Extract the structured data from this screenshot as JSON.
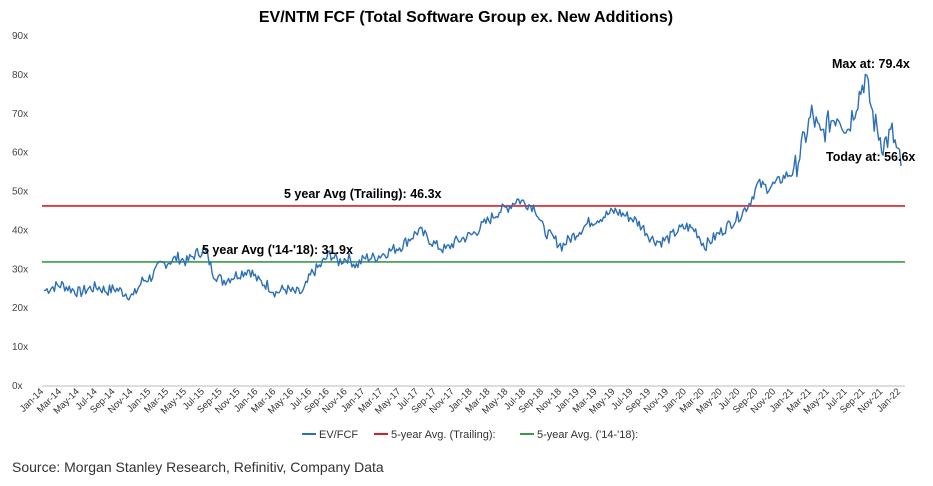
{
  "chart_data": {
    "type": "line",
    "title": "EV/NTM FCF (Total Software Group ex. New Additions)",
    "xlabel": "",
    "ylabel": "",
    "ylim": [
      0,
      90
    ],
    "yticks": [
      "0x",
      "10x",
      "20x",
      "30x",
      "40x",
      "50x",
      "60x",
      "70x",
      "80x",
      "90x"
    ],
    "x_tick_labels": [
      "Jan-14",
      "Mar-14",
      "May-14",
      "Jul-14",
      "Sep-14",
      "Nov-14",
      "Jan-15",
      "Mar-15",
      "May-15",
      "Jul-15",
      "Sep-15",
      "Nov-15",
      "Jan-16",
      "Mar-16",
      "May-16",
      "Jul-16",
      "Sep-16",
      "Nov-16",
      "Jan-17",
      "Mar-17",
      "May-17",
      "Jul-17",
      "Sep-17",
      "Nov-17",
      "Jan-18",
      "Mar-18",
      "May-18",
      "Jul-18",
      "Sep-18",
      "Nov-18",
      "Jan-19",
      "Mar-19",
      "May-19",
      "Jul-19",
      "Sep-19",
      "Nov-19",
      "Jan-20",
      "Mar-20",
      "May-20",
      "Jul-20",
      "Sep-20",
      "Nov-20",
      "Jan-21",
      "Mar-21",
      "May-21",
      "Jul-21",
      "Sep-21",
      "Nov-21",
      "Jan-22"
    ],
    "grid": false,
    "legend_position": "bottom",
    "series": [
      {
        "name": "EV/FCF",
        "color": "#2b6fb6",
        "x": [
          "2014-01",
          "2014-02",
          "2014-03",
          "2014-04",
          "2014-05",
          "2014-06",
          "2014-07",
          "2014-08",
          "2014-09",
          "2014-10",
          "2014-11",
          "2014-12",
          "2015-01",
          "2015-02",
          "2015-03",
          "2015-04",
          "2015-05",
          "2015-06",
          "2015-07",
          "2015-08",
          "2015-09",
          "2015-10",
          "2015-11",
          "2015-12",
          "2016-01",
          "2016-02",
          "2016-03",
          "2016-04",
          "2016-05",
          "2016-06",
          "2016-07",
          "2016-08",
          "2016-09",
          "2016-10",
          "2016-11",
          "2016-12",
          "2017-01",
          "2017-02",
          "2017-03",
          "2017-04",
          "2017-05",
          "2017-06",
          "2017-07",
          "2017-08",
          "2017-09",
          "2017-10",
          "2017-11",
          "2017-12",
          "2018-01",
          "2018-02",
          "2018-03",
          "2018-04",
          "2018-05",
          "2018-06",
          "2018-07",
          "2018-08",
          "2018-09",
          "2018-10",
          "2018-11",
          "2018-12",
          "2019-01",
          "2019-02",
          "2019-03",
          "2019-04",
          "2019-05",
          "2019-06",
          "2019-07",
          "2019-08",
          "2019-09",
          "2019-10",
          "2019-11",
          "2019-12",
          "2020-01",
          "2020-02",
          "2020-03",
          "2020-04",
          "2020-05",
          "2020-06",
          "2020-07",
          "2020-08",
          "2020-09",
          "2020-10",
          "2020-11",
          "2020-12",
          "2021-01",
          "2021-02",
          "2021-03",
          "2021-04",
          "2021-05",
          "2021-06",
          "2021-07",
          "2021-08",
          "2021-09",
          "2021-10",
          "2021-11",
          "2021-12",
          "2022-01"
        ],
        "values": [
          24.5,
          25.5,
          26,
          25,
          24,
          25,
          25.5,
          24.5,
          25,
          24,
          23,
          27,
          28,
          31,
          32,
          33,
          32,
          34,
          35,
          29,
          27,
          28,
          29,
          30,
          27,
          26,
          24,
          25,
          24,
          24,
          29,
          31,
          34,
          32,
          33,
          31,
          33,
          33,
          34,
          35,
          36,
          38,
          40,
          38,
          36,
          35,
          37,
          38,
          39,
          41,
          43,
          45,
          46,
          48,
          47,
          46,
          40,
          38,
          36,
          38,
          40,
          42,
          43,
          44,
          45,
          44,
          43,
          41,
          38,
          37,
          38,
          40,
          41,
          40,
          36,
          38,
          40,
          42,
          44,
          47,
          52,
          51,
          52,
          54,
          55,
          62,
          70,
          64,
          68,
          70,
          66,
          73,
          79.4,
          68,
          62,
          65,
          56.6
        ]
      },
      {
        "name": "5-year Avg. (Trailing):",
        "color": "#d71f26",
        "constant": 46.3
      },
      {
        "name": "5-year Avg. ('14-'18):",
        "color": "#3a9a4a",
        "constant": 31.9
      }
    ],
    "annotations": {
      "trailing_avg": "5 year Avg (Trailing): 46.3x",
      "avg_14_18": "5 year Avg ('14-'18): 31.9x",
      "max": "Max at: 79.4x",
      "today": "Today at: 56.6x"
    }
  },
  "source": "Source: Morgan Stanley Research, Refinitiv, Company Data"
}
